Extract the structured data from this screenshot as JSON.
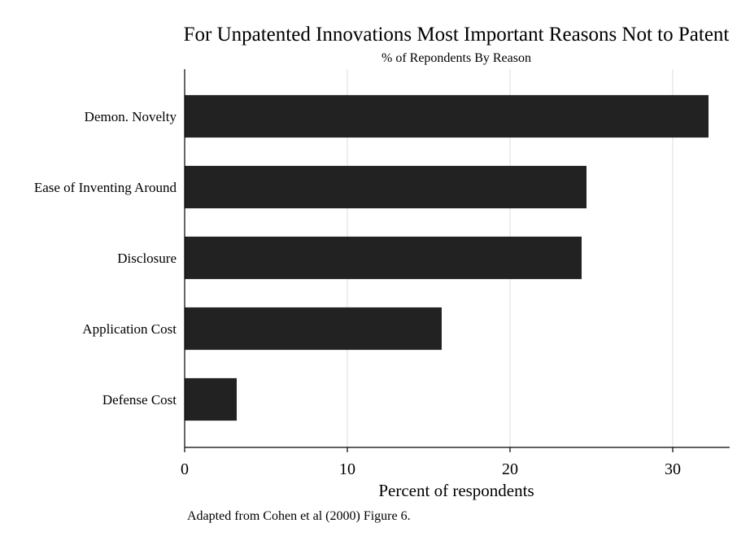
{
  "chart_data": {
    "type": "bar",
    "orientation": "horizontal",
    "title": "For Unpatented Innovations Most Important Reasons Not to Patent",
    "subtitle": "% of Repondents By Reason",
    "categories": [
      "Demon. Novelty",
      "Ease of Inventing Around",
      "Disclosure",
      "Application Cost",
      "Defense Cost"
    ],
    "values": [
      32.2,
      24.7,
      24.4,
      15.8,
      3.2
    ],
    "xlabel": "Percent of respondents",
    "ylabel": "",
    "xlim": [
      0,
      33.5
    ],
    "xticks": [
      0,
      10,
      20,
      30
    ],
    "grid": true,
    "bar_color": "#222222",
    "grid_color": "#e8e8e8",
    "note": "Adapted from Cohen et al (2000) Figure 6."
  }
}
